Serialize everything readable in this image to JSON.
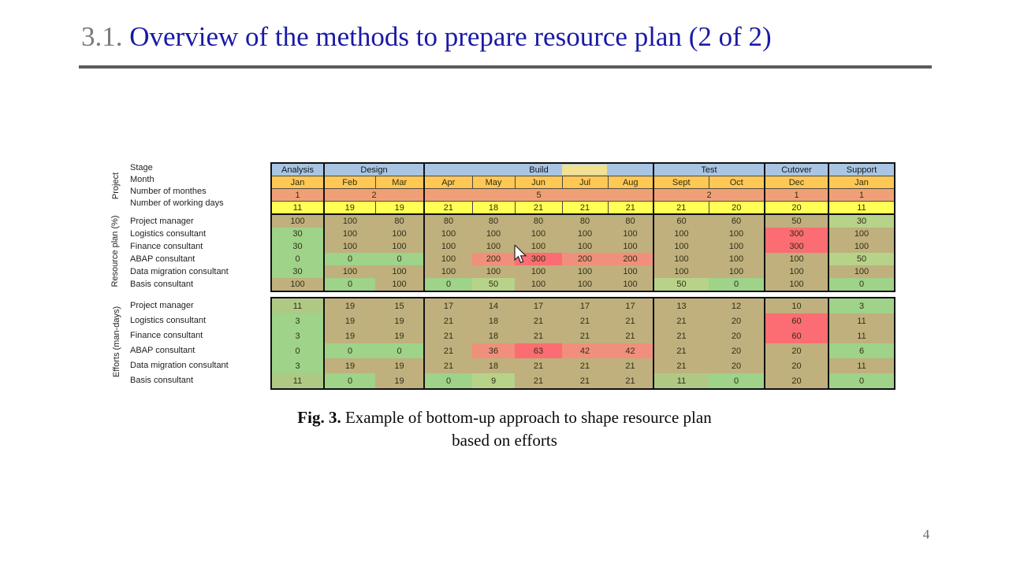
{
  "slide": {
    "title": {
      "prefix": "3.1.",
      "text": " Overview of the methods to prepare resource plan (2 of 2)"
    },
    "caption": {
      "bold": "Fig. 3.",
      "line1_rest": " Example of bottom-up approach to shape resource plan",
      "line2": "based on efforts"
    },
    "page_number": "4"
  },
  "table": {
    "section_labels": {
      "project": "Project",
      "resource": "Resource plan (%)",
      "efforts": "Efforts (man-days)"
    },
    "header_row_labels": [
      "Stage",
      "Month",
      "Number of monthes",
      "Number of working days"
    ],
    "stage_groups": [
      {
        "label": "Analysis",
        "span": 1
      },
      {
        "label": "Design",
        "span": 2
      },
      {
        "label": "Build",
        "span": 5
      },
      {
        "label": "Test",
        "span": 2
      },
      {
        "label": "Cutover",
        "span": 1
      },
      {
        "label": "Support",
        "span": 1
      }
    ],
    "months": [
      "Jan",
      "Feb",
      "Mar",
      "Apr",
      "May",
      "Jun",
      "Jul",
      "Aug",
      "Sept",
      "Oct",
      "Dec",
      "Jan"
    ],
    "num_monthes": [
      {
        "v": "1",
        "span": 1
      },
      {
        "v": "2",
        "span": 2
      },
      {
        "v": "5",
        "span": 5
      },
      {
        "v": "2",
        "span": 2
      },
      {
        "v": "1",
        "span": 1
      },
      {
        "v": "1",
        "span": 1
      }
    ],
    "working_days": [
      "11",
      "19",
      "19",
      "21",
      "18",
      "21",
      "21",
      "21",
      "21",
      "20",
      "20",
      "11"
    ],
    "resource_rows": [
      {
        "label": "Project manager",
        "cells": [
          [
            "100",
            "k"
          ],
          [
            "100",
            "k"
          ],
          [
            "80",
            "k"
          ],
          [
            "80",
            "k"
          ],
          [
            "80",
            "k"
          ],
          [
            "80",
            "k"
          ],
          [
            "80",
            "k"
          ],
          [
            "80",
            "k"
          ],
          [
            "60",
            "k"
          ],
          [
            "60",
            "k"
          ],
          [
            "50",
            "k"
          ],
          [
            "30",
            "lg"
          ]
        ]
      },
      {
        "label": "Logistics consultant",
        "cells": [
          [
            "30",
            "g"
          ],
          [
            "100",
            "k"
          ],
          [
            "100",
            "k"
          ],
          [
            "100",
            "k"
          ],
          [
            "100",
            "k"
          ],
          [
            "100",
            "k"
          ],
          [
            "100",
            "k"
          ],
          [
            "100",
            "k"
          ],
          [
            "100",
            "k"
          ],
          [
            "100",
            "k"
          ],
          [
            "300",
            "r"
          ],
          [
            "100",
            "k"
          ]
        ]
      },
      {
        "label": "Finance consultant",
        "cells": [
          [
            "30",
            "g"
          ],
          [
            "100",
            "k"
          ],
          [
            "100",
            "k"
          ],
          [
            "100",
            "k"
          ],
          [
            "100",
            "k"
          ],
          [
            "100",
            "k"
          ],
          [
            "100",
            "k"
          ],
          [
            "100",
            "k"
          ],
          [
            "100",
            "k"
          ],
          [
            "100",
            "k"
          ],
          [
            "300",
            "r"
          ],
          [
            "100",
            "k"
          ]
        ]
      },
      {
        "label": "ABAP consultant",
        "cells": [
          [
            "0",
            "g"
          ],
          [
            "0",
            "g"
          ],
          [
            "0",
            "g"
          ],
          [
            "100",
            "k"
          ],
          [
            "200",
            "s"
          ],
          [
            "300",
            "r"
          ],
          [
            "200",
            "s"
          ],
          [
            "200",
            "s"
          ],
          [
            "100",
            "k"
          ],
          [
            "100",
            "k"
          ],
          [
            "100",
            "k"
          ],
          [
            "50",
            "lg"
          ]
        ]
      },
      {
        "label": "Data migration consultant",
        "cells": [
          [
            "30",
            "g"
          ],
          [
            "100",
            "k"
          ],
          [
            "100",
            "k"
          ],
          [
            "100",
            "k"
          ],
          [
            "100",
            "k"
          ],
          [
            "100",
            "k"
          ],
          [
            "100",
            "k"
          ],
          [
            "100",
            "k"
          ],
          [
            "100",
            "k"
          ],
          [
            "100",
            "k"
          ],
          [
            "100",
            "k"
          ],
          [
            "100",
            "k"
          ]
        ]
      },
      {
        "label": "Basis consultant",
        "cells": [
          [
            "100",
            "k"
          ],
          [
            "0",
            "g"
          ],
          [
            "100",
            "k"
          ],
          [
            "0",
            "g"
          ],
          [
            "50",
            "lg"
          ],
          [
            "100",
            "k"
          ],
          [
            "100",
            "k"
          ],
          [
            "100",
            "k"
          ],
          [
            "50",
            "lg"
          ],
          [
            "0",
            "g"
          ],
          [
            "100",
            "k"
          ],
          [
            "0",
            "g"
          ]
        ]
      }
    ],
    "efforts_rows": [
      {
        "label": "Project manager",
        "cells": [
          [
            "11",
            "kg"
          ],
          [
            "19",
            "k"
          ],
          [
            "15",
            "k"
          ],
          [
            "17",
            "k"
          ],
          [
            "14",
            "k"
          ],
          [
            "17",
            "k"
          ],
          [
            "17",
            "k"
          ],
          [
            "17",
            "k"
          ],
          [
            "13",
            "k"
          ],
          [
            "12",
            "k"
          ],
          [
            "10",
            "k"
          ],
          [
            "3",
            "g"
          ]
        ]
      },
      {
        "label": "Logistics consultant",
        "cells": [
          [
            "3",
            "g"
          ],
          [
            "19",
            "k"
          ],
          [
            "19",
            "k"
          ],
          [
            "21",
            "k"
          ],
          [
            "18",
            "k"
          ],
          [
            "21",
            "k"
          ],
          [
            "21",
            "k"
          ],
          [
            "21",
            "k"
          ],
          [
            "21",
            "k"
          ],
          [
            "20",
            "k"
          ],
          [
            "60",
            "r"
          ],
          [
            "11",
            "k"
          ]
        ]
      },
      {
        "label": "Finance consultant",
        "cells": [
          [
            "3",
            "g"
          ],
          [
            "19",
            "k"
          ],
          [
            "19",
            "k"
          ],
          [
            "21",
            "k"
          ],
          [
            "18",
            "k"
          ],
          [
            "21",
            "k"
          ],
          [
            "21",
            "k"
          ],
          [
            "21",
            "k"
          ],
          [
            "21",
            "k"
          ],
          [
            "20",
            "k"
          ],
          [
            "60",
            "r"
          ],
          [
            "11",
            "k"
          ]
        ]
      },
      {
        "label": "ABAP consultant",
        "cells": [
          [
            "0",
            "g"
          ],
          [
            "0",
            "g"
          ],
          [
            "0",
            "g"
          ],
          [
            "21",
            "k"
          ],
          [
            "36",
            "s"
          ],
          [
            "63",
            "r"
          ],
          [
            "42",
            "s"
          ],
          [
            "42",
            "s"
          ],
          [
            "21",
            "k"
          ],
          [
            "20",
            "k"
          ],
          [
            "20",
            "k"
          ],
          [
            "6",
            "g"
          ]
        ]
      },
      {
        "label": "Data migration consultant",
        "cells": [
          [
            "3",
            "g"
          ],
          [
            "19",
            "k"
          ],
          [
            "19",
            "k"
          ],
          [
            "21",
            "k"
          ],
          [
            "18",
            "k"
          ],
          [
            "21",
            "k"
          ],
          [
            "21",
            "k"
          ],
          [
            "21",
            "k"
          ],
          [
            "21",
            "k"
          ],
          [
            "20",
            "k"
          ],
          [
            "20",
            "k"
          ],
          [
            "11",
            "k"
          ]
        ]
      },
      {
        "label": "Basis consultant",
        "cells": [
          [
            "11",
            "kg"
          ],
          [
            "0",
            "g"
          ],
          [
            "19",
            "k"
          ],
          [
            "0",
            "g"
          ],
          [
            "9",
            "lg"
          ],
          [
            "21",
            "k"
          ],
          [
            "21",
            "k"
          ],
          [
            "21",
            "k"
          ],
          [
            "11",
            "kg"
          ],
          [
            "0",
            "g"
          ],
          [
            "20",
            "k"
          ],
          [
            "0",
            "g"
          ]
        ]
      }
    ]
  },
  "colors": {
    "stage": "#a8c6e4",
    "month": "#ffc855",
    "monthes": "#f0a076",
    "days": "#ffff55",
    "k": "#bfb07e",
    "g": "#9ed389",
    "lg": "#b7d389",
    "kg": "#afc985",
    "s": "#f0907c",
    "r": "#fb6d72",
    "title_blue": "#1a1aa5",
    "title_gray": "#7a7a7a"
  }
}
